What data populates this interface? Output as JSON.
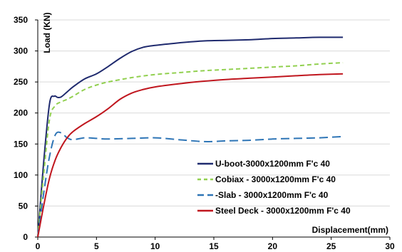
{
  "chart_data": {
    "type": "line",
    "title": "",
    "xlabel": "Displacement(mm)",
    "ylabel": "Load (KN)",
    "xlim": [
      0,
      30
    ],
    "ylim": [
      0,
      350
    ],
    "x_ticks": [
      "0",
      "5",
      "10",
      "15",
      "20",
      "25",
      "30"
    ],
    "y_ticks": [
      "0",
      "50",
      "100",
      "150",
      "200",
      "250",
      "300",
      "350"
    ],
    "grid": "horizontal",
    "legend_position": "bottom-right",
    "series": [
      {
        "name": "U-boot-3000x1200mm F'c 40",
        "color": "#1f2a6e",
        "dash": "solid",
        "x": [
          0,
          0.5,
          1.0,
          1.4,
          1.7,
          2.0,
          2.5,
          3.0,
          4.0,
          5.0,
          6.0,
          7.0,
          8.0,
          9.0,
          10.0,
          12.0,
          14.0,
          16.0,
          18.0,
          20.0,
          22.0,
          24.0,
          26.0
        ],
        "y": [
          0,
          120,
          215,
          227,
          225,
          226,
          234,
          242,
          255,
          263,
          275,
          288,
          299,
          306,
          309,
          313,
          316,
          317,
          318,
          320,
          321,
          322,
          322
        ]
      },
      {
        "name": "Cobiax - 3000x1200mm F'c 40",
        "color": "#92d050",
        "dash": "dashed",
        "x": [
          0,
          0.5,
          1.0,
          1.5,
          2.0,
          2.5,
          3.0,
          4.0,
          5.0,
          6.0,
          8.0,
          10.0,
          12.0,
          14.0,
          16.0,
          18.0,
          20.0,
          22.0,
          24.0,
          26.0
        ],
        "y": [
          0,
          100,
          190,
          212,
          218,
          222,
          227,
          238,
          245,
          250,
          257,
          262,
          265,
          268,
          270,
          272,
          274,
          276,
          279,
          281
        ]
      },
      {
        "name": "-Slab - 3000x1200mm F'c 40",
        "color": "#2e75b6",
        "dash": "long-dash",
        "x": [
          0,
          0.5,
          1.0,
          1.5,
          2.0,
          2.5,
          3.0,
          4.0,
          5.0,
          6.0,
          8.0,
          10.0,
          12.0,
          14.0,
          15.0,
          16.0,
          18.0,
          20.0,
          22.0,
          24.0,
          26.0
        ],
        "y": [
          0,
          70,
          130,
          165,
          168,
          160,
          157,
          160,
          159,
          158,
          159,
          160,
          157,
          154,
          154,
          155,
          156,
          158,
          159,
          160,
          162
        ]
      },
      {
        "name": "Steel Deck - 3000x1200mm F'c 40",
        "color": "#c0161e",
        "dash": "solid",
        "x": [
          0,
          0.5,
          1.0,
          1.5,
          2.0,
          2.5,
          3.0,
          4.0,
          5.0,
          6.0,
          7.0,
          8.0,
          9.0,
          10.0,
          12.0,
          14.0,
          16.0,
          18.0,
          20.0,
          22.0,
          24.0,
          26.0
        ],
        "y": [
          0,
          50,
          95,
          125,
          145,
          160,
          170,
          183,
          194,
          207,
          222,
          232,
          238,
          242,
          247,
          251,
          254,
          256,
          258,
          260,
          262,
          263
        ]
      }
    ]
  }
}
